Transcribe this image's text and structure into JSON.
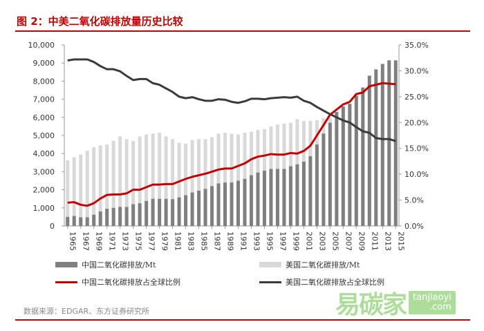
{
  "title": "图 2：中美二氧化碳排放量历史比较",
  "source": "数据来源：EDGAR、东方证券研究所",
  "watermark": {
    "text": "易碳家",
    "domain_line1": "tanjiaoyi",
    "domain_line2": ".com"
  },
  "colors": {
    "china_bar": "#7f7f7f",
    "us_bar": "#d9d9d9",
    "china_line": "#c00000",
    "us_line": "#3a3a3a",
    "accent": "#c00000"
  },
  "chart_data": {
    "type": "bar+line",
    "title": "图 2：中美二氧化碳排放量历史比较",
    "x": [
      1965,
      1966,
      1967,
      1968,
      1969,
      1970,
      1971,
      1972,
      1973,
      1974,
      1975,
      1976,
      1977,
      1978,
      1979,
      1980,
      1981,
      1982,
      1983,
      1984,
      1985,
      1986,
      1987,
      1988,
      1989,
      1990,
      1991,
      1992,
      1993,
      1994,
      1995,
      1996,
      1997,
      1998,
      1999,
      2000,
      2001,
      2002,
      2003,
      2004,
      2005,
      2006,
      2007,
      2008,
      2009,
      2010,
      2011,
      2012,
      2013,
      2014,
      2015
    ],
    "x_tick_labels": [
      "1965",
      "1967",
      "1969",
      "1971",
      "1973",
      "1975",
      "1977",
      "1979",
      "1981",
      "1983",
      "1985",
      "1987",
      "1989",
      "1991",
      "1993",
      "1995",
      "1997",
      "1999",
      "2001",
      "2003",
      "2005",
      "2007",
      "2009",
      "2011",
      "2013",
      "2015"
    ],
    "y_left": {
      "ylim": [
        0,
        10000
      ],
      "ticks": [
        "0",
        "1,000",
        "2,000",
        "3,000",
        "4,000",
        "5,000",
        "6,000",
        "7,000",
        "8,000",
        "9,000",
        "10,000"
      ]
    },
    "y_right": {
      "ylim": [
        0,
        35
      ],
      "ticks": [
        "0.0%",
        "5.0%",
        "10.0%",
        "15.0%",
        "20.0%",
        "25.0%",
        "30.0%",
        "35.0%"
      ]
    },
    "series": [
      {
        "name": "中国二氧化碳排放/Mt",
        "type": "bar",
        "axis": "left",
        "values": [
          500,
          550,
          480,
          480,
          620,
          800,
          950,
          1000,
          1050,
          1050,
          1200,
          1250,
          1380,
          1500,
          1500,
          1500,
          1480,
          1580,
          1700,
          1850,
          1950,
          2050,
          2200,
          2350,
          2400,
          2400,
          2500,
          2600,
          2800,
          2950,
          3050,
          3150,
          3150,
          3150,
          3300,
          3400,
          3550,
          3850,
          4500,
          5100,
          5700,
          6300,
          6600,
          6750,
          7200,
          7650,
          8300,
          8650,
          8950,
          9150,
          9150
        ]
      },
      {
        "name": "美国二氧化碳排放/Mt",
        "type": "bar",
        "axis": "left",
        "values": [
          3630,
          3800,
          3950,
          4150,
          4350,
          4450,
          4500,
          4700,
          4950,
          4800,
          4700,
          4950,
          5050,
          5100,
          5150,
          4950,
          4800,
          4600,
          4550,
          4750,
          4800,
          4800,
          4900,
          5100,
          5150,
          5100,
          5050,
          5150,
          5200,
          5300,
          5350,
          5500,
          5600,
          5650,
          5700,
          5900,
          5800,
          5800,
          5850,
          5950,
          5950,
          5900,
          5950,
          5800,
          5450,
          5600,
          5500,
          5250,
          5450,
          5500,
          5400
        ]
      },
      {
        "name": "中国二氧化碳排放占全球比例",
        "type": "line",
        "axis": "right",
        "values": [
          4.5,
          4.6,
          4.1,
          3.9,
          4.4,
          5.3,
          6.0,
          6.1,
          6.1,
          6.3,
          7.0,
          7.0,
          7.5,
          8.0,
          8.0,
          8.1,
          8.1,
          8.6,
          9.1,
          9.5,
          9.8,
          10.1,
          10.5,
          10.9,
          11.1,
          11.1,
          11.6,
          12.1,
          12.9,
          13.4,
          13.6,
          13.9,
          13.8,
          13.8,
          14.1,
          14.0,
          14.5,
          15.5,
          17.5,
          19.5,
          21.5,
          22.5,
          23.5,
          24.0,
          25.5,
          25.8,
          27.0,
          27.3,
          27.6,
          27.5,
          27.4
        ]
      },
      {
        "name": "美国二氧化碳排放占全球比例",
        "type": "line",
        "axis": "right",
        "values": [
          32.0,
          32.2,
          32.2,
          32.2,
          31.7,
          30.9,
          30.3,
          30.3,
          29.9,
          29.0,
          28.2,
          28.4,
          28.4,
          27.6,
          27.3,
          26.6,
          25.9,
          25.0,
          24.7,
          24.9,
          24.5,
          24.2,
          24.2,
          24.5,
          24.4,
          24.0,
          23.8,
          24.1,
          24.6,
          24.6,
          24.5,
          24.7,
          24.8,
          24.9,
          24.8,
          25.0,
          24.2,
          23.8,
          23.0,
          22.3,
          21.6,
          21.0,
          20.4,
          20.0,
          19.1,
          18.3,
          18.0,
          17.0,
          16.8,
          16.8,
          16.4
        ]
      }
    ],
    "legend_position": "bottom",
    "grid": false
  }
}
